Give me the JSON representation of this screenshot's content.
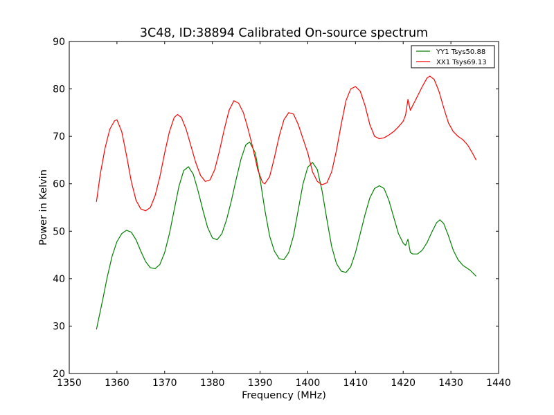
{
  "chart_data": {
    "type": "line",
    "title": "3C48, ID:38894 Calibrated On-source spectrum",
    "xlabel": "Frequency (MHz)",
    "ylabel": "Power in Kelvin",
    "xlim": [
      1350,
      1440
    ],
    "ylim": [
      20,
      90
    ],
    "xticks": [
      "1350",
      "1360",
      "1370",
      "1380",
      "1390",
      "1400",
      "1410",
      "1420",
      "1430",
      "1440"
    ],
    "yticks": [
      "20",
      "30",
      "40",
      "50",
      "60",
      "70",
      "80",
      "90"
    ],
    "grid": false,
    "legend_position": "top-right",
    "series": [
      {
        "name": "YY1 Tsys50.88",
        "color": "#008000",
        "points": [
          [
            1355.7,
            29.3
          ],
          [
            1357,
            35.5
          ],
          [
            1358,
            40.5
          ],
          [
            1359,
            44.8
          ],
          [
            1360,
            47.8
          ],
          [
            1361,
            49.5
          ],
          [
            1362,
            50.2
          ],
          [
            1363,
            49.8
          ],
          [
            1364,
            48.2
          ],
          [
            1365,
            45.8
          ],
          [
            1366,
            43.6
          ],
          [
            1367,
            42.3
          ],
          [
            1368,
            42.1
          ],
          [
            1369,
            43.0
          ],
          [
            1370,
            45.5
          ],
          [
            1371,
            49.5
          ],
          [
            1372,
            54.5
          ],
          [
            1373,
            59.5
          ],
          [
            1374,
            62.8
          ],
          [
            1375,
            63.6
          ],
          [
            1376,
            62.0
          ],
          [
            1377,
            58.5
          ],
          [
            1378,
            54.5
          ],
          [
            1379,
            50.8
          ],
          [
            1380,
            48.6
          ],
          [
            1381,
            48.2
          ],
          [
            1382,
            49.5
          ],
          [
            1383,
            52.5
          ],
          [
            1384,
            56.5
          ],
          [
            1385,
            61.0
          ],
          [
            1386,
            65.2
          ],
          [
            1387,
            68.2
          ],
          [
            1387.8,
            68.8
          ],
          [
            1389,
            66.5
          ],
          [
            1390,
            61.0
          ],
          [
            1391,
            54.5
          ],
          [
            1392,
            49.0
          ],
          [
            1393,
            45.8
          ],
          [
            1394,
            44.2
          ],
          [
            1395,
            44.0
          ],
          [
            1396,
            45.5
          ],
          [
            1397,
            49.0
          ],
          [
            1398,
            54.5
          ],
          [
            1399,
            60.0
          ],
          [
            1400,
            63.5
          ],
          [
            1401,
            64.5
          ],
          [
            1402,
            63.0
          ],
          [
            1403,
            58.5
          ],
          [
            1404,
            52.5
          ],
          [
            1405,
            46.8
          ],
          [
            1406,
            43.2
          ],
          [
            1407,
            41.6
          ],
          [
            1408,
            41.3
          ],
          [
            1409,
            42.5
          ],
          [
            1410,
            45.5
          ],
          [
            1411,
            49.5
          ],
          [
            1412,
            53.5
          ],
          [
            1413,
            57.0
          ],
          [
            1414,
            59.0
          ],
          [
            1415,
            59.6
          ],
          [
            1416,
            59.0
          ],
          [
            1417,
            56.5
          ],
          [
            1418,
            53.0
          ],
          [
            1419,
            49.5
          ],
          [
            1420,
            47.5
          ],
          [
            1420.5,
            47.0
          ],
          [
            1421,
            48.3
          ],
          [
            1421.5,
            45.5
          ],
          [
            1422,
            45.2
          ],
          [
            1423,
            45.2
          ],
          [
            1424,
            46.0
          ],
          [
            1425,
            47.6
          ],
          [
            1426,
            49.8
          ],
          [
            1427,
            51.8
          ],
          [
            1427.7,
            52.4
          ],
          [
            1428.5,
            51.6
          ],
          [
            1429.5,
            49.0
          ],
          [
            1430.5,
            46.0
          ],
          [
            1431.5,
            44.0
          ],
          [
            1432.5,
            42.8
          ],
          [
            1434,
            41.8
          ],
          [
            1435.3,
            40.5
          ]
        ]
      },
      {
        "name": "XX1 Tsys69.13",
        "color": "#ff0000",
        "points": [
          [
            1355.7,
            56.2
          ],
          [
            1356.5,
            62.0
          ],
          [
            1357.5,
            67.5
          ],
          [
            1358.5,
            71.5
          ],
          [
            1359.5,
            73.3
          ],
          [
            1360,
            73.5
          ],
          [
            1361,
            71.0
          ],
          [
            1362,
            66.0
          ],
          [
            1363,
            60.5
          ],
          [
            1364,
            56.5
          ],
          [
            1365,
            54.7
          ],
          [
            1366,
            54.3
          ],
          [
            1367,
            55.0
          ],
          [
            1368,
            57.5
          ],
          [
            1369,
            61.5
          ],
          [
            1370,
            66.5
          ],
          [
            1371,
            71.0
          ],
          [
            1372,
            74.0
          ],
          [
            1372.7,
            74.6
          ],
          [
            1373.5,
            74.0
          ],
          [
            1374.5,
            71.5
          ],
          [
            1375.5,
            68.0
          ],
          [
            1376.5,
            64.5
          ],
          [
            1377.5,
            61.8
          ],
          [
            1378.5,
            60.5
          ],
          [
            1379.5,
            60.8
          ],
          [
            1380.5,
            63.0
          ],
          [
            1381.5,
            67.0
          ],
          [
            1382.5,
            71.5
          ],
          [
            1383.5,
            75.5
          ],
          [
            1384.5,
            77.5
          ],
          [
            1385.5,
            77.0
          ],
          [
            1386.5,
            75.0
          ],
          [
            1387.5,
            71.5
          ],
          [
            1388.5,
            67.5
          ],
          [
            1389.5,
            63.0
          ],
          [
            1390.5,
            60.3
          ],
          [
            1391,
            60.0
          ],
          [
            1392,
            61.5
          ],
          [
            1393,
            65.5
          ],
          [
            1394,
            70.0
          ],
          [
            1395,
            73.5
          ],
          [
            1396,
            75.0
          ],
          [
            1397,
            74.7
          ],
          [
            1398,
            72.5
          ],
          [
            1399,
            69.5
          ],
          [
            1400,
            66.5
          ],
          [
            1401,
            62.5
          ],
          [
            1402,
            60.5
          ],
          [
            1403,
            59.8
          ],
          [
            1404,
            60.2
          ],
          [
            1405,
            62.5
          ],
          [
            1406,
            67.0
          ],
          [
            1407,
            72.5
          ],
          [
            1408,
            77.5
          ],
          [
            1409,
            80.0
          ],
          [
            1410,
            80.5
          ],
          [
            1411,
            79.5
          ],
          [
            1412,
            76.5
          ],
          [
            1413,
            72.5
          ],
          [
            1414,
            70.0
          ],
          [
            1415,
            69.5
          ],
          [
            1416,
            69.7
          ],
          [
            1417,
            70.3
          ],
          [
            1418,
            71.0
          ],
          [
            1419,
            72.0
          ],
          [
            1420,
            73.2
          ],
          [
            1420.5,
            74.5
          ],
          [
            1421,
            77.8
          ],
          [
            1421.5,
            75.5
          ],
          [
            1422,
            76.5
          ],
          [
            1423,
            78.5
          ],
          [
            1424,
            80.5
          ],
          [
            1425,
            82.3
          ],
          [
            1425.6,
            82.7
          ],
          [
            1426.5,
            82.0
          ],
          [
            1427.5,
            79.5
          ],
          [
            1428.5,
            76.0
          ],
          [
            1429.5,
            72.8
          ],
          [
            1430.5,
            71.0
          ],
          [
            1431.5,
            70.0
          ],
          [
            1432.5,
            69.3
          ],
          [
            1433.5,
            68.2
          ],
          [
            1434.5,
            66.5
          ],
          [
            1435.3,
            65.0
          ]
        ]
      }
    ]
  }
}
